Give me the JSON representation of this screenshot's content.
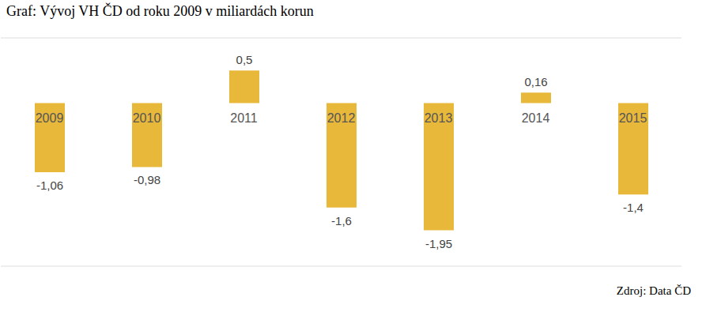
{
  "chart_data": {
    "type": "bar",
    "title": "Graf: Vývoj VH ČD od roku 2009 v miliardách korun",
    "source": "Zdroj: Data ČD",
    "categories": [
      "2009",
      "2010",
      "2011",
      "2012",
      "2013",
      "2014",
      "2015"
    ],
    "values": [
      -1.06,
      -0.98,
      0.5,
      -1.6,
      -1.95,
      0.16,
      -1.4
    ],
    "value_labels": [
      "-1,06",
      "-0,98",
      "0,5",
      "-1,6",
      "-1,95",
      "0,16",
      "-1,4"
    ],
    "color": "#e8b83b",
    "ylim": [
      -2.5,
      1
    ],
    "yticks": [
      -2.5,
      -2,
      -1.5,
      -1,
      -0.5,
      0,
      0.5,
      1
    ],
    "grid": true,
    "data_labels": true,
    "tick_labels": "x"
  }
}
